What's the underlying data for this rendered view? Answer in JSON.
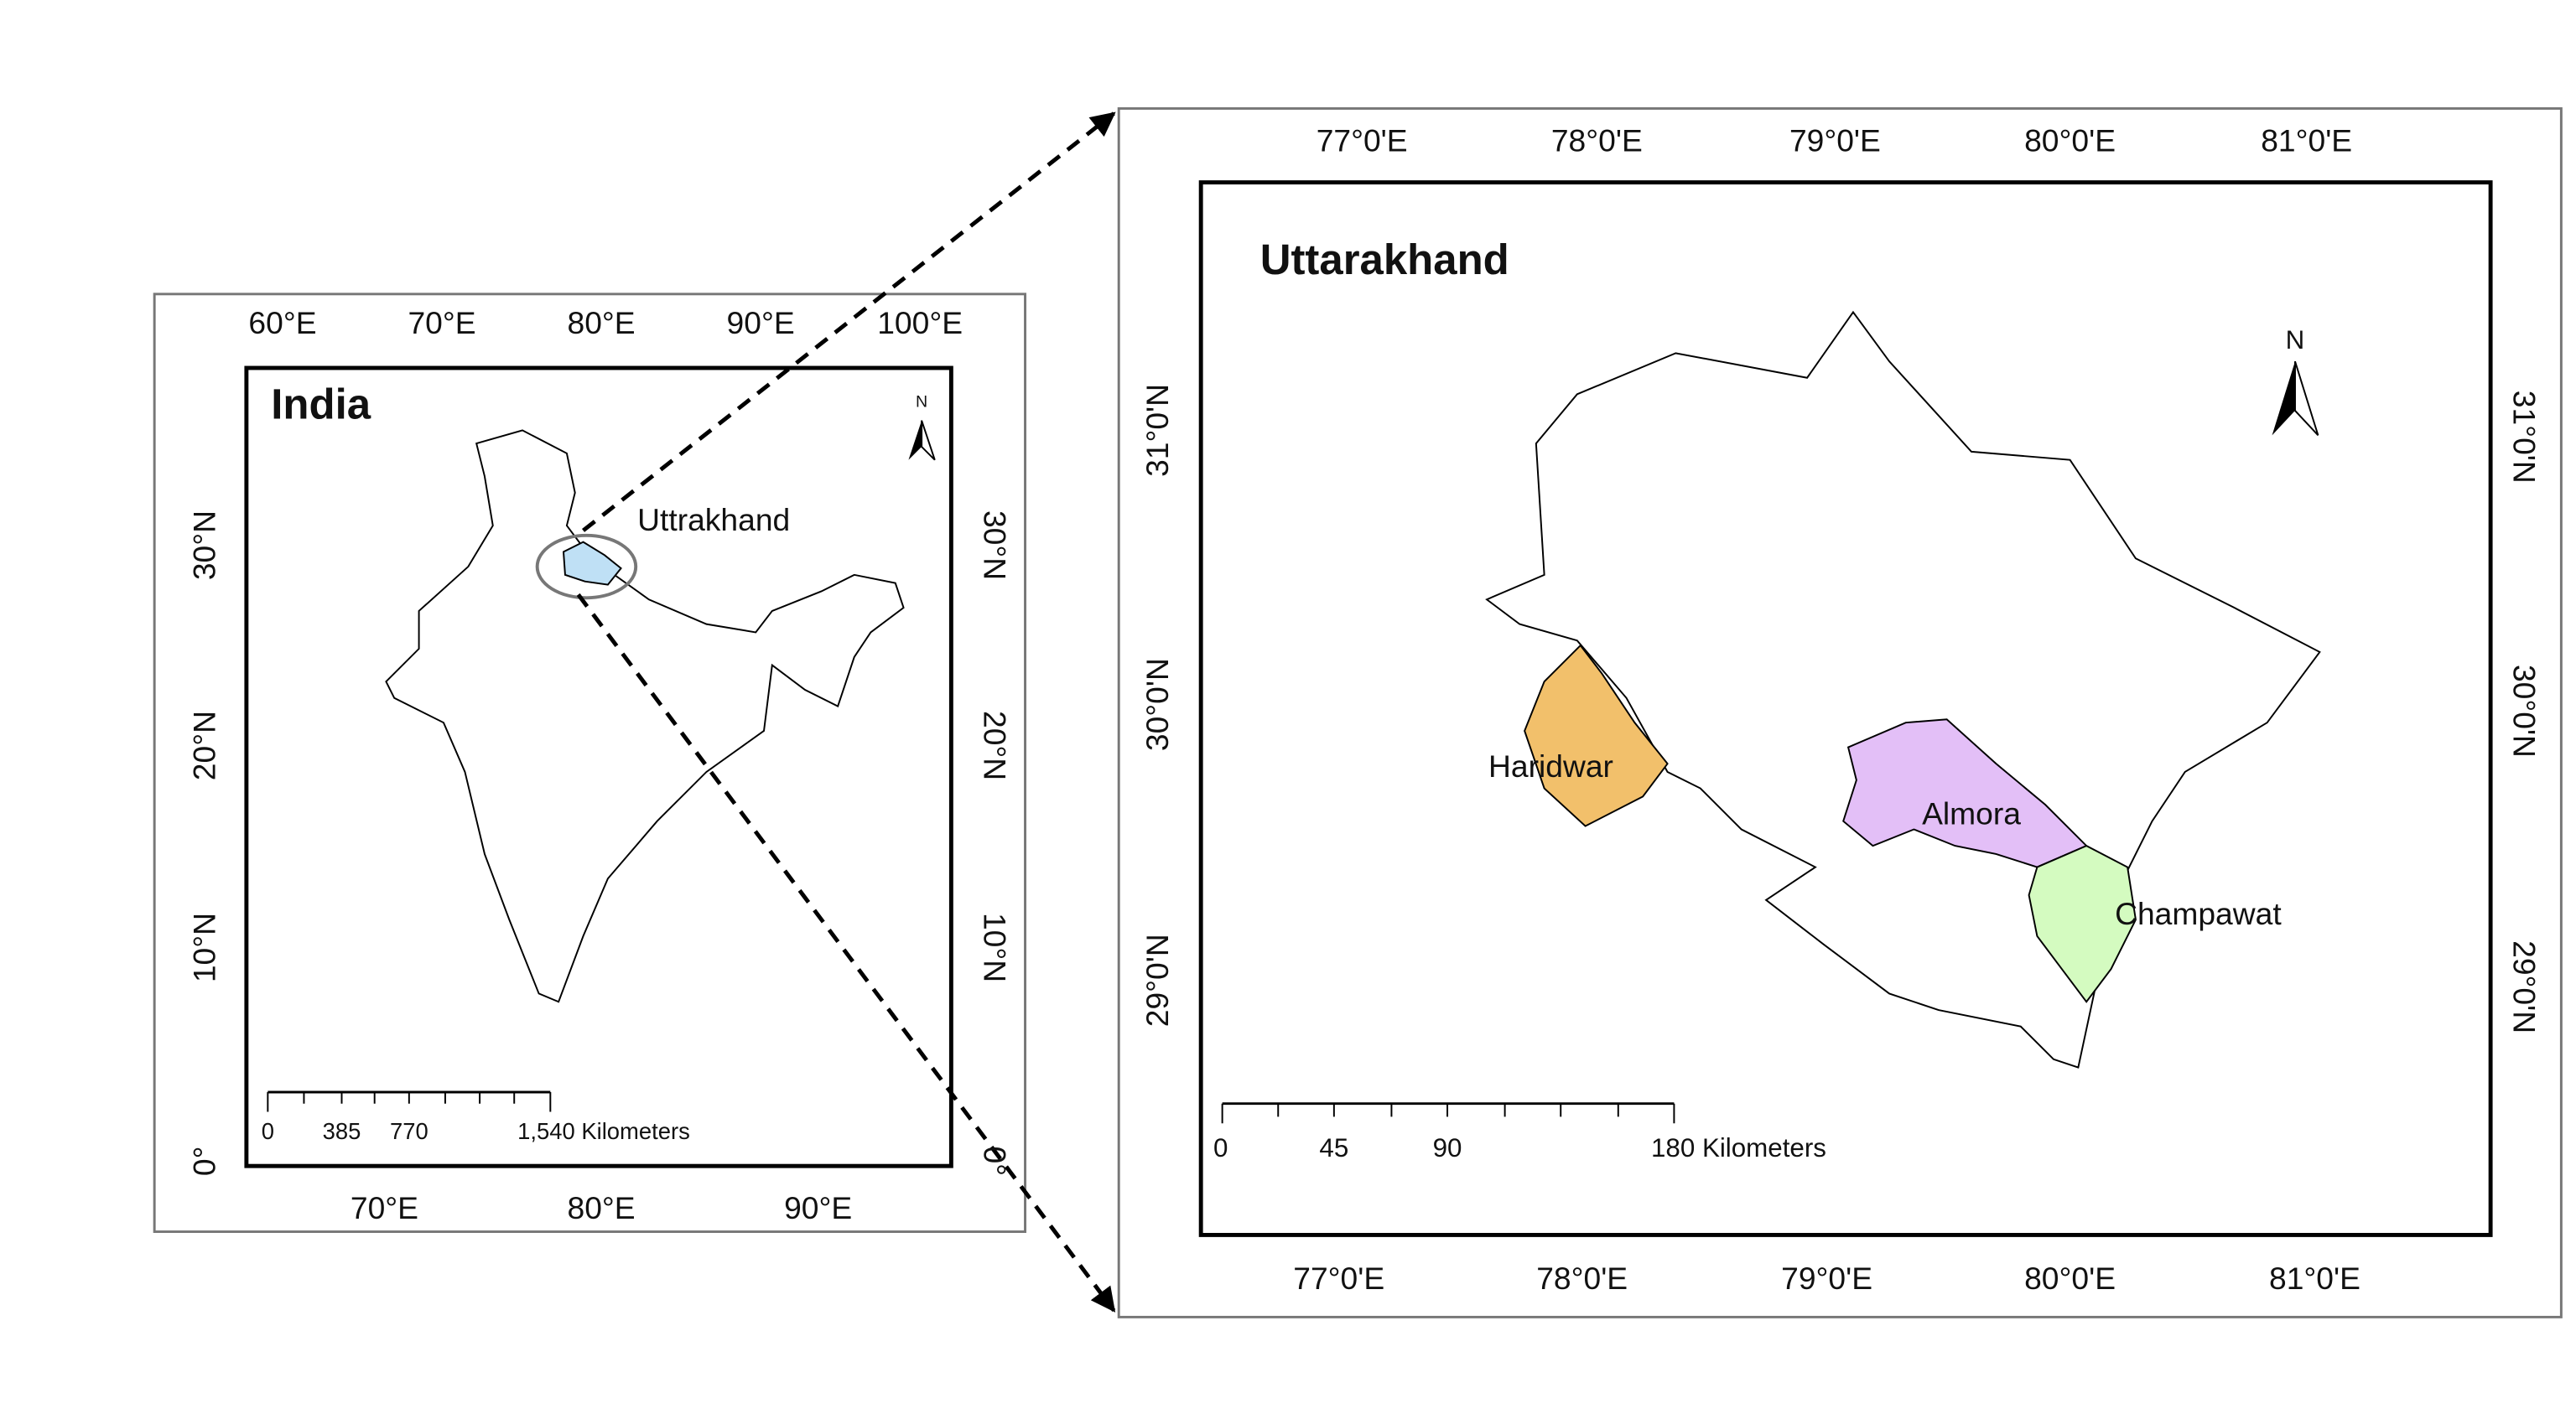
{
  "india_map": {
    "title": "India",
    "longitude_labels_top": [
      "60°E",
      "70°E",
      "80°E",
      "90°E",
      "100°E"
    ],
    "longitude_labels_bottom": [
      "70°E",
      "80°E",
      "90°E"
    ],
    "latitude_labels_left": [
      "30°N",
      "20°N",
      "10°N",
      "0°"
    ],
    "latitude_labels_right": [
      "30°N",
      "20°N",
      "10°N",
      "0°"
    ],
    "region_label": "Uttrakhand",
    "north": "N",
    "scale_labels": [
      "0",
      "385",
      "770",
      "1,540 Kilometers"
    ]
  },
  "uttarakhand_map": {
    "title": "Uttarakhand",
    "longitude_labels_top": [
      "77°0'E",
      "78°0'E",
      "79°0'E",
      "80°0'E",
      "81°0'E"
    ],
    "longitude_labels_bottom": [
      "77°0'E",
      "78°0'E",
      "79°0'E",
      "80°0'E",
      "81°0'E"
    ],
    "latitude_labels_left": [
      "31°0'N",
      "30°0'N",
      "29°0'N"
    ],
    "latitude_labels_right": [
      "31°0'N",
      "30°0'N",
      "29°0'N"
    ],
    "district_labels": [
      "Haridwar",
      "Almora",
      "Champawat"
    ],
    "north": "N",
    "scale_labels": [
      "0",
      "45",
      "90",
      "180 Kilometers"
    ]
  }
}
